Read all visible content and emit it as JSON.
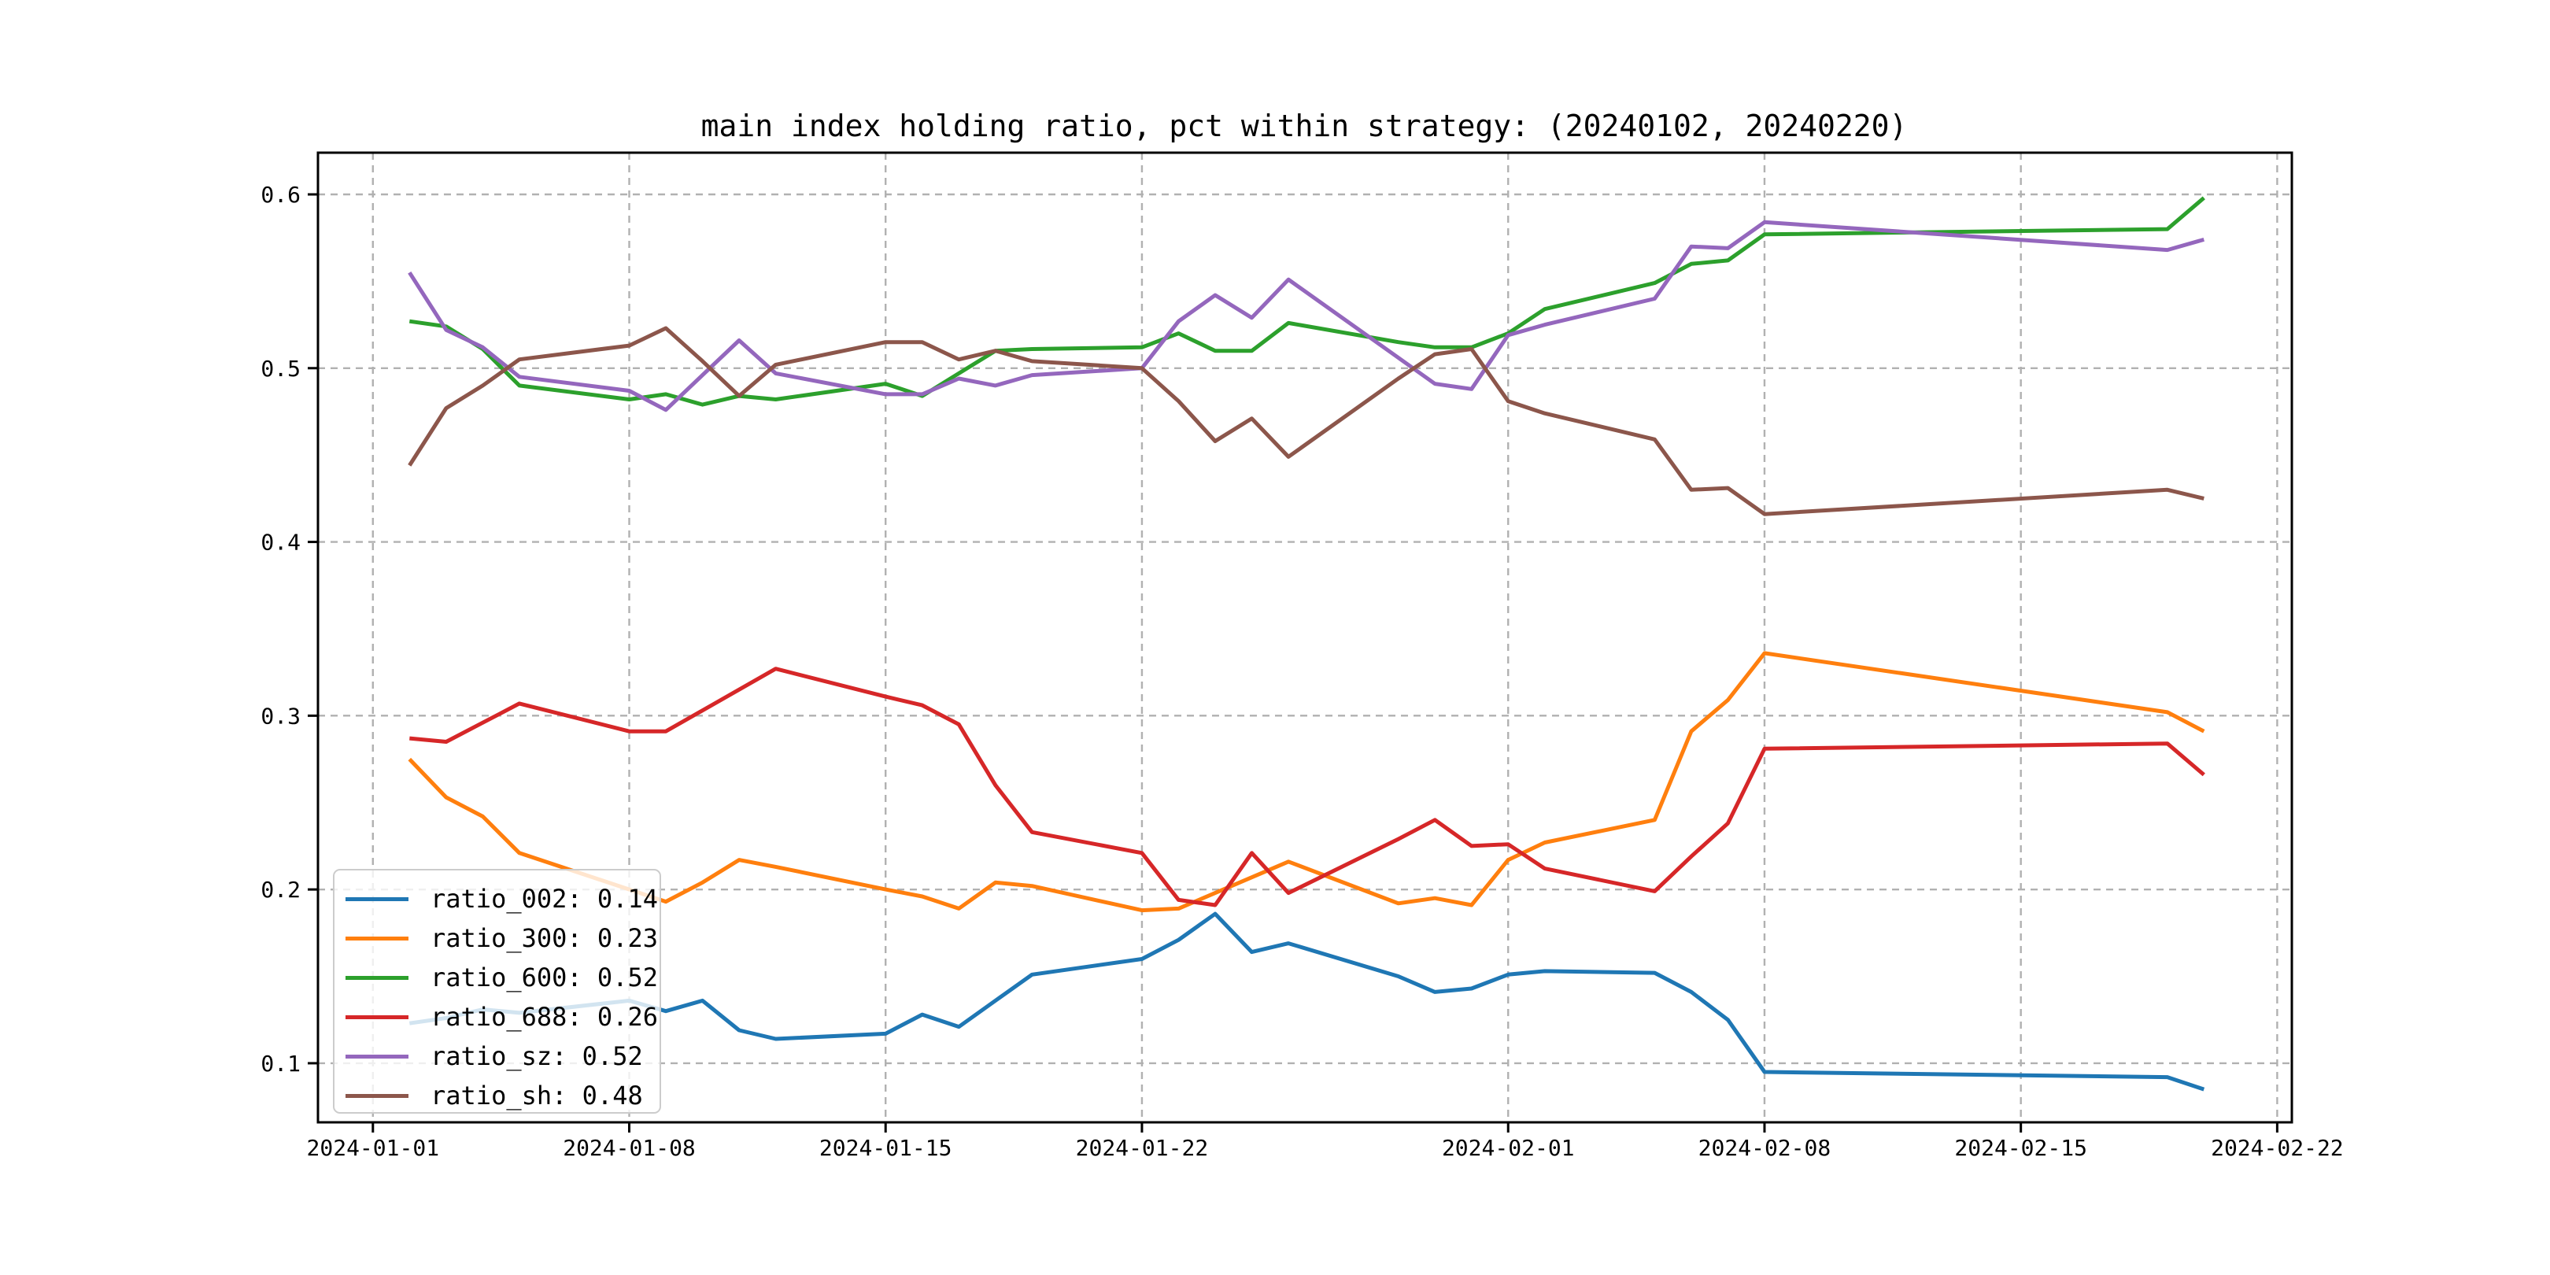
{
  "figure": {
    "background": "#ffffff"
  },
  "chart_data": {
    "type": "line",
    "title": "main index holding ratio, pct within strategy: (20240102, 20240220)",
    "grid": "dashed",
    "legend_position": "lower left",
    "x_axis": {
      "unit": "date",
      "tick_labels": [
        "2024-01-01",
        "2024-01-08",
        "2024-01-15",
        "2024-01-22",
        "2024-02-01",
        "2024-02-08",
        "2024-02-15",
        "2024-02-22"
      ],
      "tick_day_offsets": [
        0,
        7,
        14,
        21,
        31,
        38,
        45,
        52
      ],
      "range_days": [
        -1.5,
        52.4
      ]
    },
    "y_axis": {
      "tick_labels": [
        "0.1",
        "0.2",
        "0.3",
        "0.4",
        "0.5",
        "0.6"
      ],
      "tick_values": [
        0.1,
        0.2,
        0.3,
        0.4,
        0.5,
        0.6
      ],
      "range": [
        0.066,
        0.624
      ]
    },
    "trading_dates": [
      "2024-01-02",
      "2024-01-03",
      "2024-01-04",
      "2024-01-05",
      "2024-01-08",
      "2024-01-09",
      "2024-01-10",
      "2024-01-11",
      "2024-01-12",
      "2024-01-15",
      "2024-01-16",
      "2024-01-17",
      "2024-01-18",
      "2024-01-19",
      "2024-01-22",
      "2024-01-23",
      "2024-01-24",
      "2024-01-25",
      "2024-01-26",
      "2024-01-29",
      "2024-01-30",
      "2024-01-31",
      "2024-02-01",
      "2024-02-02",
      "2024-02-05",
      "2024-02-06",
      "2024-02-07",
      "2024-02-08",
      "2024-02-19",
      "2024-02-20"
    ],
    "trading_day_offsets": [
      1,
      2,
      3,
      4,
      7,
      8,
      9,
      10,
      11,
      14,
      15,
      16,
      17,
      18,
      21,
      22,
      23,
      24,
      25,
      28,
      29,
      30,
      31,
      32,
      35,
      36,
      37,
      38,
      49,
      50
    ],
    "series": [
      {
        "name": "ratio_002",
        "legend_label": "ratio_002: 0.14",
        "color": "#1f77b4",
        "values": [
          0.123,
          0.126,
          0.131,
          0.129,
          0.136,
          0.13,
          0.136,
          0.119,
          0.114,
          0.117,
          0.128,
          0.121,
          0.136,
          0.151,
          0.16,
          0.171,
          0.186,
          0.164,
          0.169,
          0.15,
          0.141,
          0.143,
          0.151,
          0.153,
          0.152,
          0.141,
          0.125,
          0.095,
          0.092,
          0.085
        ]
      },
      {
        "name": "ratio_300",
        "legend_label": "ratio_300: 0.23",
        "color": "#ff7f0e",
        "values": [
          0.275,
          0.253,
          0.242,
          0.221,
          0.2,
          0.193,
          0.204,
          0.217,
          0.213,
          0.2,
          0.196,
          0.189,
          0.204,
          0.202,
          0.188,
          0.189,
          0.198,
          0.207,
          0.216,
          0.192,
          0.195,
          0.191,
          0.217,
          0.227,
          0.24,
          0.291,
          0.309,
          0.336,
          0.302,
          0.291
        ]
      },
      {
        "name": "ratio_600",
        "legend_label": "ratio_600: 0.52",
        "color": "#2ca02c",
        "values": [
          0.527,
          0.524,
          0.511,
          0.49,
          0.482,
          0.485,
          0.479,
          0.484,
          0.482,
          0.491,
          0.484,
          0.497,
          0.51,
          0.511,
          0.512,
          0.52,
          0.51,
          0.51,
          0.526,
          0.515,
          0.512,
          0.512,
          0.52,
          0.534,
          0.549,
          0.56,
          0.562,
          0.577,
          0.58,
          0.598
        ]
      },
      {
        "name": "ratio_688",
        "legend_label": "ratio_688: 0.26",
        "color": "#d62728",
        "values": [
          0.287,
          0.285,
          0.296,
          0.307,
          0.291,
          0.291,
          0.303,
          0.315,
          0.327,
          0.311,
          0.306,
          0.295,
          0.26,
          0.233,
          0.221,
          0.194,
          0.191,
          0.221,
          0.198,
          0.229,
          0.24,
          0.225,
          0.226,
          0.212,
          0.199,
          0.219,
          0.238,
          0.281,
          0.284,
          0.266
        ]
      },
      {
        "name": "ratio_sz",
        "legend_label": "ratio_sz: 0.52",
        "color": "#9467bd",
        "values": [
          0.555,
          0.522,
          0.512,
          0.495,
          0.487,
          0.476,
          0.496,
          0.516,
          0.497,
          0.485,
          0.485,
          0.494,
          0.49,
          0.496,
          0.5,
          0.527,
          0.542,
          0.529,
          0.551,
          0.506,
          0.491,
          0.488,
          0.519,
          0.525,
          0.54,
          0.57,
          0.569,
          0.584,
          0.568,
          0.574
        ]
      },
      {
        "name": "ratio_sh",
        "legend_label": "ratio_sh: 0.48",
        "color": "#8c564b",
        "values": [
          0.444,
          0.477,
          0.49,
          0.505,
          0.513,
          0.523,
          0.504,
          0.484,
          0.502,
          0.515,
          0.515,
          0.505,
          0.51,
          0.504,
          0.5,
          0.481,
          0.458,
          0.471,
          0.449,
          0.494,
          0.508,
          0.511,
          0.481,
          0.474,
          0.459,
          0.43,
          0.431,
          0.416,
          0.43,
          0.425
        ]
      }
    ],
    "style": {
      "grid_color": "#b1b1b1",
      "spine_color": "#000000",
      "line_width": 5,
      "legend_border_color": "#cccccc"
    }
  }
}
